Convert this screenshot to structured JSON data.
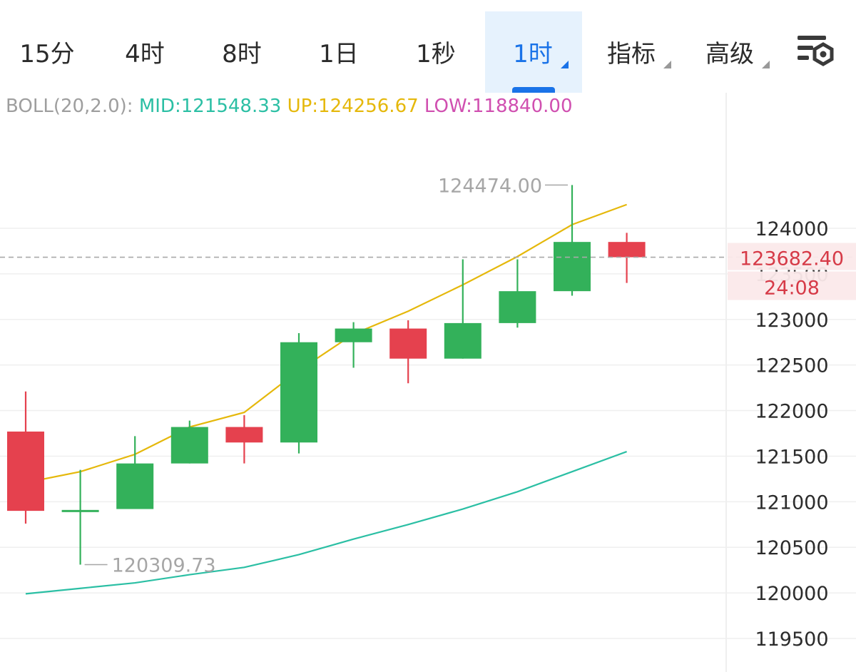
{
  "toolbar": {
    "tabs": [
      "15分",
      "4时",
      "8时",
      "1日",
      "1秒",
      "1时",
      "指标",
      "高级"
    ],
    "active_tab": "1时",
    "settings_icon": "chart-settings-gear-icon"
  },
  "indicator": {
    "label": "BOLL(20,2.0):",
    "mid": "MID:121548.33",
    "up": "UP:124256.67",
    "low": "LOW:118840.00",
    "colors": {
      "label": "#9e9e9e",
      "mid": "#2bbfa4",
      "up": "#e5b80b",
      "low": "#d04fb0"
    }
  },
  "chart_data": {
    "type": "candlestick",
    "candles": [
      {
        "open": 121770,
        "high": 122210,
        "low": 120760,
        "close": 120900
      },
      {
        "open": 120900,
        "high": 121350,
        "low": 120310,
        "close": 120910
      },
      {
        "open": 120920,
        "high": 121720,
        "low": 120920,
        "close": 121420
      },
      {
        "open": 121420,
        "high": 121890,
        "low": 121420,
        "close": 121820
      },
      {
        "open": 121820,
        "high": 121950,
        "low": 121420,
        "close": 121650
      },
      {
        "open": 121650,
        "high": 122850,
        "low": 121530,
        "close": 122750
      },
      {
        "open": 122750,
        "high": 122970,
        "low": 122470,
        "close": 122900
      },
      {
        "open": 122900,
        "high": 122990,
        "low": 122300,
        "close": 122570
      },
      {
        "open": 122570,
        "high": 123660,
        "low": 122570,
        "close": 122960
      },
      {
        "open": 122960,
        "high": 123660,
        "low": 122910,
        "close": 123310
      },
      {
        "open": 123310,
        "high": 124474,
        "low": 123260,
        "close": 123850
      },
      {
        "open": 123850,
        "high": 123950,
        "low": 123400,
        "close": 123682.4
      }
    ],
    "boll_up": [
      121210,
      121330,
      121520,
      121820,
      121980,
      122440,
      122840,
      123090,
      123380,
      123690,
      124040,
      124260
    ],
    "boll_low": [
      119990,
      120050,
      120110,
      120200,
      120280,
      120420,
      120590,
      120750,
      120920,
      121110,
      121330,
      121550
    ],
    "y_ticks": [
      124000,
      123500,
      123000,
      122500,
      122000,
      121500,
      121000,
      120500,
      120000,
      119500
    ],
    "y_tick_labels": [
      "124000",
      "123500",
      "123000",
      "122500",
      "122000",
      "121500",
      "121000",
      "120500",
      "120000",
      "119500"
    ],
    "ylim": [
      119235,
      125210
    ],
    "max_label": "124474.00",
    "min_label": "120309.73",
    "last_price": 123682.4,
    "last_price_label": "123682.40",
    "countdown_label": "24:08",
    "colors": {
      "up": "#33b15a",
      "down": "#e5414e",
      "boll_up": "#e5b80b",
      "boll_low": "#2bbfa4",
      "last_price": "#d63a47",
      "grid": "#efefef",
      "axis_text": "#2b2b2b",
      "annot": "#a6a6a6"
    }
  }
}
